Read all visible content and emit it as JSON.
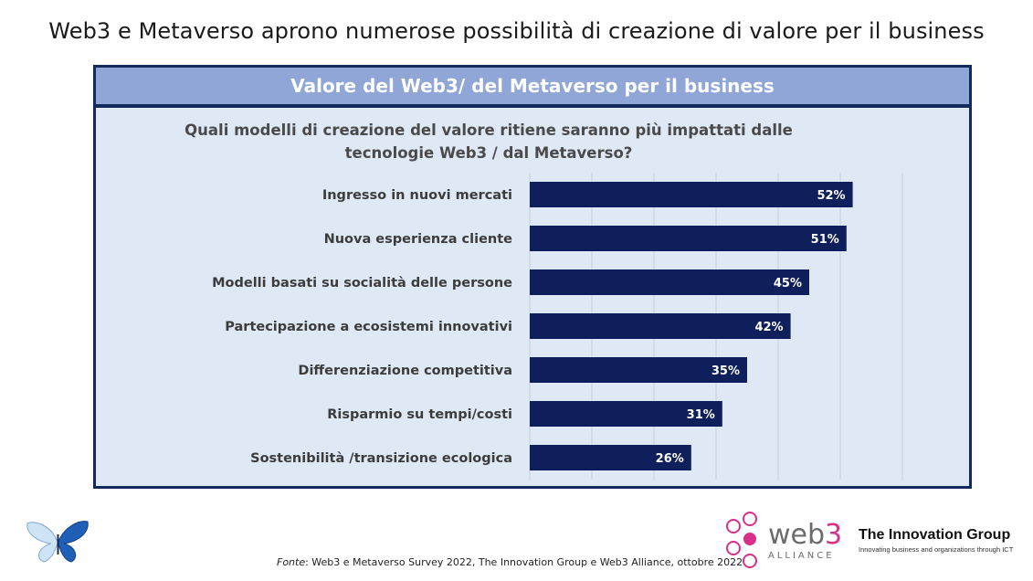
{
  "slide_title": "Web3 e Metaverso aprono numerose possibilità di creazione di valore per il business",
  "panel": {
    "header": "Valore del Web3/ del Metaverso per il business",
    "question": "Quali modelli di creazione del valore ritiene saranno più impattati dalle tecnologie Web3 / dal Metaverso?"
  },
  "chart_data": {
    "type": "bar",
    "orientation": "horizontal",
    "categories": [
      "Ingresso in nuovi mercati",
      "Nuova esperienza cliente",
      "Modelli basati su socialità delle persone",
      "Partecipazione a ecosistemi innovativi",
      "Differenziazione competitiva",
      "Risparmio su tempi/costi",
      "Sostenibilità /transizione ecologica"
    ],
    "values": [
      52,
      51,
      45,
      42,
      35,
      31,
      26
    ],
    "value_labels": [
      "52%",
      "51%",
      "45%",
      "42%",
      "35%",
      "31%",
      "26%"
    ],
    "xlim": [
      0,
      60
    ],
    "grid": true,
    "bar_color": "#0e1f5b",
    "title": "",
    "xlabel": "",
    "ylabel": ""
  },
  "footer": {
    "source_label": "Fonte",
    "source_text": ": Web3 e Metaverso Survey 2022, The Innovation Group e Web3 Alliance, ottobre 2022",
    "web3_word_a": "web",
    "web3_word_b": "3",
    "web3_sub": "ALLIANCE",
    "tig_name": "The Innovation Group",
    "tig_tagline": "Innovating business and organizations through ICT"
  },
  "colors": {
    "panel_border": "#142a5c",
    "panel_header": "#8fa6d6",
    "panel_bg": "#dfe8f5",
    "web3_accent": "#d8308a"
  },
  "icons": [
    "butterfly-logo",
    "web3-alliance-logo"
  ]
}
